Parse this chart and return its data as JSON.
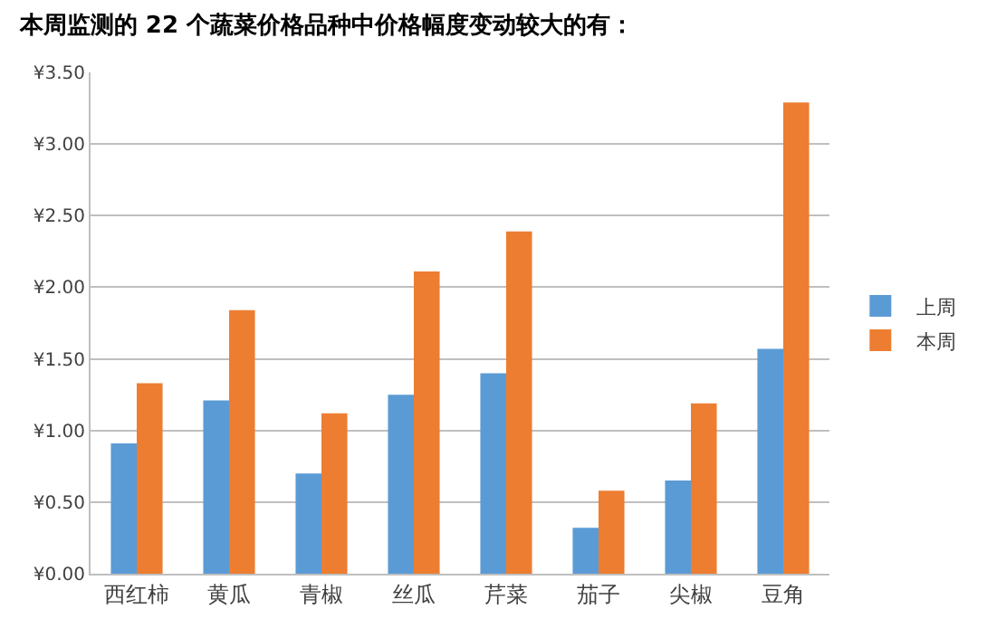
{
  "chart_data": {
    "type": "bar",
    "title": "本周监测的 22 个蔬菜价格品种中价格幅度变动较大的有：",
    "categories": [
      "西红柿",
      "黄瓜",
      "青椒",
      "丝瓜",
      "芹菜",
      "茄子",
      "尖椒",
      "豆角"
    ],
    "series": [
      {
        "name": "上周",
        "color": "#5b9bd5",
        "values": [
          0.91,
          1.21,
          0.7,
          1.25,
          1.4,
          0.32,
          0.65,
          1.57
        ]
      },
      {
        "name": "本周",
        "color": "#ed7d31",
        "values": [
          1.33,
          1.84,
          1.12,
          2.11,
          2.39,
          0.58,
          1.19,
          3.29
        ]
      }
    ],
    "ylim": [
      0,
      3.5
    ],
    "yticks": [
      {
        "value": 0,
        "label": "¥0.00"
      },
      {
        "value": 0.5,
        "label": "¥0.50"
      },
      {
        "value": 1,
        "label": "¥1.00"
      },
      {
        "value": 1.5,
        "label": "¥1.50"
      },
      {
        "value": 2,
        "label": "¥2.00"
      },
      {
        "value": 2.5,
        "label": "¥2.50"
      },
      {
        "value": 3,
        "label": "¥3.00"
      },
      {
        "value": 3.5,
        "label": "¥3.50"
      }
    ],
    "grid": "y",
    "legend": "right"
  }
}
